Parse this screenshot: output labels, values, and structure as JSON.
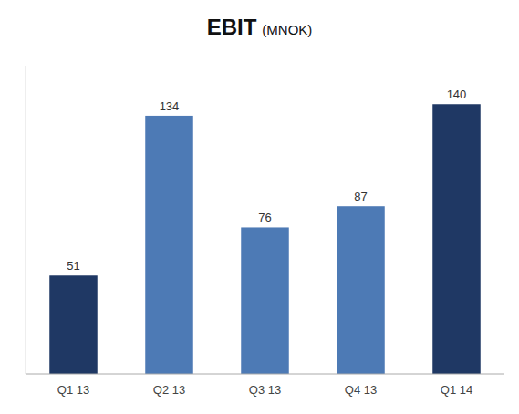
{
  "chart_data": {
    "type": "bar",
    "title": "EBIT",
    "subtitle": "(MNOK)",
    "categories": [
      "Q1 13",
      "Q2 13",
      "Q3 13",
      "Q4 13",
      "Q1 14"
    ],
    "values": [
      51,
      134,
      76,
      87,
      140
    ],
    "colors": [
      "#1f3864",
      "#4d7ab5",
      "#4d7ab5",
      "#4d7ab5",
      "#1f3864"
    ],
    "ylim": [
      0,
      160
    ],
    "grid": false,
    "data_labels": true,
    "tick_labels": "x"
  }
}
